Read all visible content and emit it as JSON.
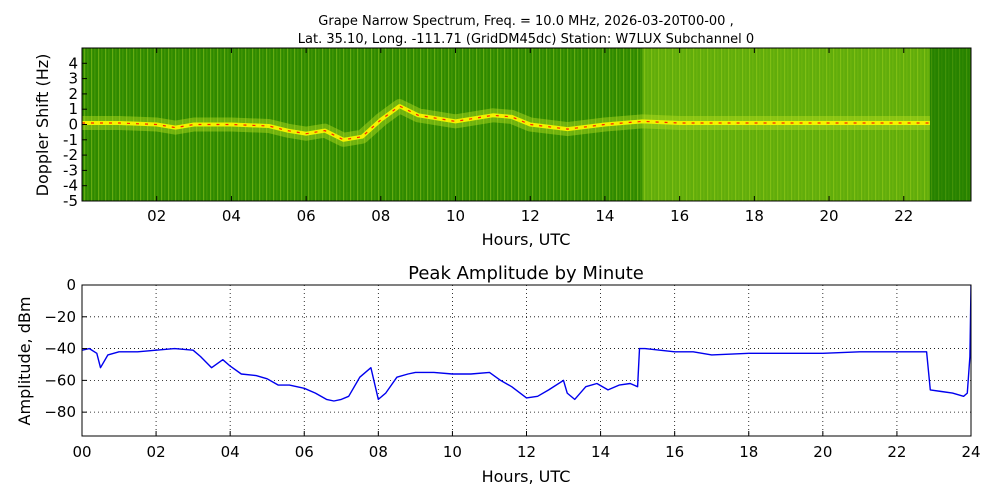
{
  "chart_data": [
    {
      "type": "heatmap",
      "title_line1": "Grape Narrow Spectrum, Freq. = 10.0 MHz, 2026-03-20T00-00 ,",
      "title_line2": "Lat.  35.10, Long. -111.71 (GridDM45dc) Station: W7LUX Subchannel 0",
      "xlabel": "Hours, UTC",
      "ylabel": "Doppler Shift (Hz)",
      "xlim": [
        0,
        23.8
      ],
      "ylim": [
        -5,
        5
      ],
      "x_ticks": [
        2,
        4,
        6,
        8,
        10,
        12,
        14,
        16,
        18,
        20,
        22
      ],
      "x_tick_labels": [
        "02",
        "04",
        "06",
        "08",
        "10",
        "12",
        "14",
        "16",
        "18",
        "20",
        "22"
      ],
      "y_ticks": [
        4,
        3,
        2,
        1,
        0,
        -1,
        -2,
        -3,
        -4,
        -5
      ],
      "y_tick_labels": [
        "4",
        "3",
        "2",
        "1",
        "0",
        "-1",
        "-2",
        "-3",
        "-4",
        "-5"
      ],
      "colors": {
        "background": "#2f8a00",
        "mid": "#8fcc10",
        "high": "#f2f200",
        "peak": "#ff2200"
      },
      "doppler_trace": {
        "x": [
          0,
          1,
          2,
          2.5,
          3,
          4,
          5,
          5.5,
          6,
          6.5,
          7,
          7.5,
          8,
          8.5,
          9,
          10,
          11,
          11.5,
          12,
          13,
          14,
          15,
          16,
          18,
          20,
          22,
          22.7
        ],
        "y": [
          0.1,
          0.1,
          0,
          -0.2,
          0,
          0,
          -0.1,
          -0.4,
          -0.6,
          -0.4,
          -1,
          -0.8,
          0.3,
          1.2,
          0.6,
          0.2,
          0.6,
          0.5,
          0,
          -0.3,
          0,
          0.2,
          0.1,
          0.1,
          0.1,
          0.1,
          0.1
        ]
      },
      "bright_band": {
        "x_start": 15.0,
        "x_end": 22.7
      },
      "dark_band": {
        "x_start": 22.7,
        "x_end": 23.8
      }
    },
    {
      "type": "line",
      "title": "Peak Amplitude by Minute",
      "xlabel": "Hours, UTC",
      "ylabel": "Amplitude, dBm",
      "xlim": [
        0,
        24
      ],
      "ylim": [
        -95,
        0
      ],
      "grid": true,
      "line_color": "#0000ee",
      "x_ticks": [
        0,
        2,
        4,
        6,
        8,
        10,
        12,
        14,
        16,
        18,
        20,
        22,
        24
      ],
      "x_tick_labels": [
        "00",
        "02",
        "04",
        "06",
        "08",
        "10",
        "12",
        "14",
        "16",
        "18",
        "20",
        "22",
        "24"
      ],
      "y_ticks": [
        0,
        -20,
        -40,
        -60,
        -80
      ],
      "y_tick_labels": [
        "0",
        "−20",
        "−40",
        "−60",
        "−80"
      ],
      "series": [
        {
          "x": [
            0,
            0.2,
            0.4,
            0.5,
            0.7,
            1,
            1.5,
            2,
            2.5,
            3,
            3.2,
            3.5,
            3.8,
            4,
            4.3,
            4.7,
            5,
            5.3,
            5.6,
            6,
            6.3,
            6.6,
            6.8,
            7,
            7.2,
            7.5,
            7.8,
            8,
            8.2,
            8.5,
            8.8,
            9,
            9.5,
            10,
            10.5,
            11,
            11.3,
            11.6,
            12,
            12.3,
            12.6,
            13,
            13.1,
            13.3,
            13.6,
            13.9,
            14.2,
            14.5,
            14.8,
            15,
            15.05,
            15.2,
            15.6,
            16,
            16.5,
            17,
            18,
            19,
            20,
            21,
            22,
            22.8,
            22.9,
            23.2,
            23.5,
            23.8,
            23.9,
            23.97,
            24
          ],
          "y": [
            -41,
            -40,
            -43,
            -52,
            -44,
            -42,
            -42,
            -41,
            -40,
            -41,
            -45,
            -52,
            -47,
            -51,
            -56,
            -57,
            -59,
            -63,
            -63,
            -65,
            -68,
            -72,
            -73,
            -72,
            -70,
            -58,
            -52,
            -72,
            -68,
            -58,
            -56,
            -55,
            -55,
            -56,
            -56,
            -55,
            -60,
            -64,
            -71,
            -70,
            -66,
            -60,
            -68,
            -72,
            -64,
            -62,
            -66,
            -63,
            -62,
            -64,
            -40,
            -40,
            -41,
            -42,
            -42,
            -44,
            -43,
            -43,
            -43,
            -42,
            -42,
            -42,
            -66,
            -67,
            -68,
            -70,
            -68,
            -45,
            0
          ]
        }
      ]
    }
  ]
}
